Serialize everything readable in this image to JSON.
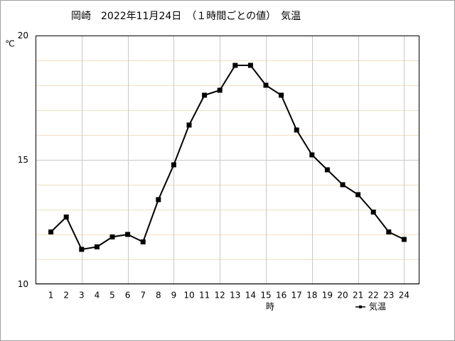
{
  "chart_data": {
    "type": "line",
    "title": "岡崎　2022年11月24日　（１時間ごとの値）　気温",
    "y_label": "℃",
    "x_label": "時",
    "x": [
      1,
      2,
      3,
      4,
      5,
      6,
      7,
      8,
      9,
      10,
      11,
      12,
      13,
      14,
      15,
      16,
      17,
      18,
      19,
      20,
      21,
      22,
      23,
      24
    ],
    "xlim": [
      0,
      25
    ],
    "xticks": [
      1,
      2,
      3,
      4,
      5,
      6,
      7,
      8,
      9,
      10,
      11,
      12,
      13,
      14,
      15,
      16,
      17,
      18,
      19,
      20,
      21,
      22,
      23,
      24
    ],
    "xgridticks": [
      3,
      6,
      9,
      12,
      15,
      18,
      21,
      24
    ],
    "ylim": [
      10,
      20
    ],
    "yticks": [
      10,
      15,
      20
    ],
    "yminorticks": [
      11,
      12,
      13,
      14,
      16,
      17,
      18,
      19
    ],
    "grid": true,
    "legend": "bottom-right",
    "series": [
      {
        "name": "気温",
        "color": "#000000",
        "values": [
          12.1,
          12.7,
          11.4,
          11.5,
          11.9,
          12.0,
          11.7,
          13.4,
          14.8,
          16.4,
          17.6,
          17.8,
          18.8,
          18.8,
          18.0,
          17.6,
          16.2,
          15.2,
          14.6,
          14.0,
          13.6,
          12.9,
          12.1,
          11.8
        ]
      }
    ]
  }
}
